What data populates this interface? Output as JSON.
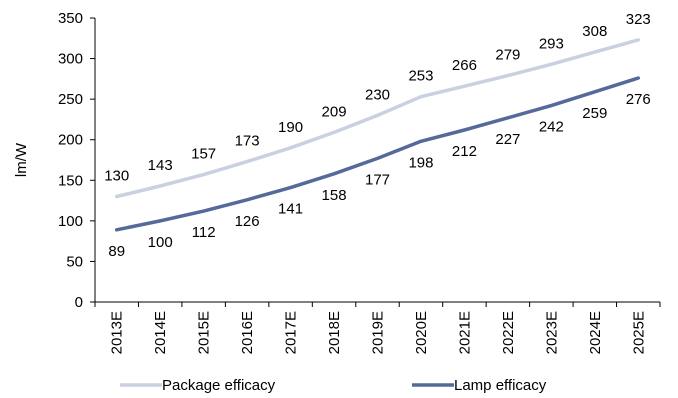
{
  "chart_data": {
    "type": "line",
    "title": "",
    "xlabel": "",
    "ylabel": "lm/W",
    "ylim": [
      0,
      350
    ],
    "yticks": [
      0,
      50,
      100,
      150,
      200,
      250,
      300,
      350
    ],
    "grid": false,
    "legend_position": "bottom",
    "categories": [
      "2013E",
      "2014E",
      "2015E",
      "2016E",
      "2017E",
      "2018E",
      "2019E",
      "2020E",
      "2021E",
      "2022E",
      "2023E",
      "2024E",
      "2025E"
    ],
    "series": [
      {
        "name": "Package efficacy",
        "color": "#c9d0e0",
        "label_position": "above",
        "values": [
          130,
          143,
          157,
          173,
          190,
          209,
          230,
          253,
          266,
          279,
          293,
          308,
          323
        ]
      },
      {
        "name": "Lamp efficacy",
        "color": "#55699a",
        "label_position": "below",
        "values": [
          89,
          100,
          112,
          126,
          141,
          158,
          177,
          198,
          212,
          227,
          242,
          259,
          276
        ]
      }
    ]
  }
}
